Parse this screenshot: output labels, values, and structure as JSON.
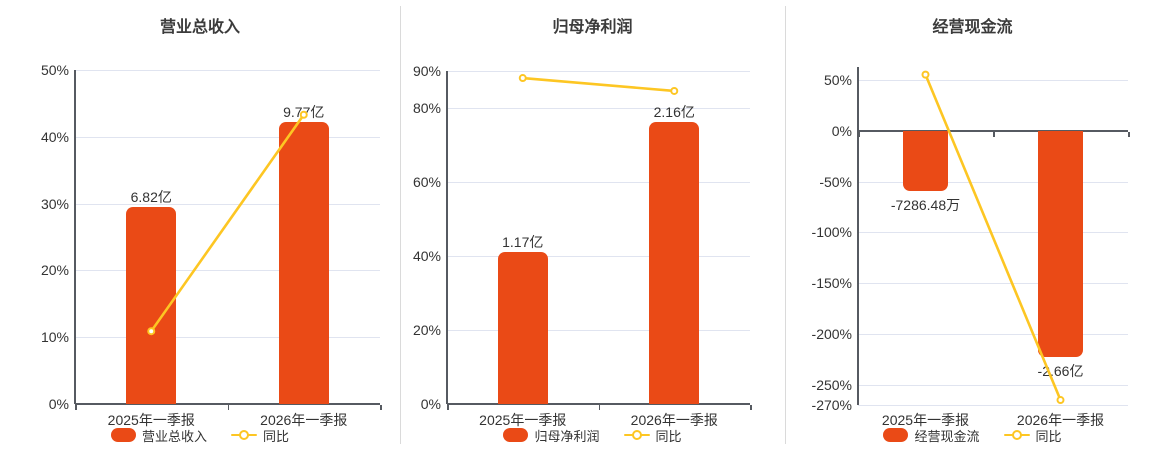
{
  "colors": {
    "background": "#ffffff",
    "bar": "#ea4a16",
    "line": "#fdc623",
    "grid": "#e0e4f0",
    "axis": "#565a61",
    "text": "#333333",
    "title": "#3b3b3b",
    "separator": "#dadada",
    "marker_fill": "#ffffff"
  },
  "chart_data": [
    {
      "type": "bar+line",
      "title": "营业总收入",
      "categories": [
        "2025年一季报",
        "2026年一季报"
      ],
      "series": [
        {
          "name": "营业总收入",
          "type": "bar",
          "unit": "亿",
          "values": [
            6.82,
            9.77
          ],
          "labels": [
            "6.82亿",
            "9.77亿"
          ],
          "plot_pct": [
            29.5,
            42.2
          ]
        },
        {
          "name": "同比",
          "type": "line",
          "unit": "%",
          "values": [
            10.9,
            43.3
          ]
        }
      ],
      "y_axis": {
        "min": 0,
        "max": 50,
        "ticks": [
          50,
          40,
          30,
          20,
          10,
          0
        ],
        "tick_labels": [
          "50%",
          "40%",
          "30%",
          "20%",
          "10%",
          "0%"
        ]
      },
      "legend": [
        "营业总收入",
        "同比"
      ],
      "legend_position": "bottom",
      "grid": true
    },
    {
      "type": "bar+line",
      "title": "归母净利润",
      "categories": [
        "2025年一季报",
        "2026年一季报"
      ],
      "series": [
        {
          "name": "归母净利润",
          "type": "bar",
          "unit": "亿",
          "values": [
            1.17,
            2.16
          ],
          "labels": [
            "1.17亿",
            "2.16亿"
          ],
          "plot_pct": [
            41.1,
            76.2
          ]
        },
        {
          "name": "同比",
          "type": "line",
          "unit": "%",
          "values": [
            88.1,
            84.6
          ]
        }
      ],
      "y_axis": {
        "min": 0,
        "max": 90,
        "ticks": [
          90,
          80,
          60,
          40,
          20,
          0
        ],
        "tick_labels": [
          "90%",
          "80%",
          "60%",
          "40%",
          "20%",
          "0%"
        ]
      },
      "legend": [
        "归母净利润",
        "同比"
      ],
      "legend_position": "bottom",
      "grid": true
    },
    {
      "type": "bar+line",
      "title": "经营现金流",
      "categories": [
        "2025年一季报",
        "2026年一季报"
      ],
      "series": [
        {
          "name": "经营现金流",
          "type": "bar",
          "unit": "亿",
          "values": [
            -0.728648,
            -2.66
          ],
          "labels": [
            "-7286.48万",
            "-2.66亿"
          ],
          "plot_pct": [
            -59,
            -223
          ]
        },
        {
          "name": "同比",
          "type": "line",
          "unit": "%",
          "values": [
            55.5,
            -265.1
          ]
        }
      ],
      "y_axis": {
        "min": -270,
        "max": 63,
        "ticks": [
          50,
          0,
          -50,
          -100,
          -150,
          -200,
          -250,
          -270
        ],
        "tick_labels": [
          "50%",
          "0%",
          "-50%",
          "-100%",
          "-150%",
          "-200%",
          "-250%",
          "-270%"
        ]
      },
      "legend": [
        "经营现金流",
        "同比"
      ],
      "legend_position": "bottom",
      "grid": true
    }
  ]
}
